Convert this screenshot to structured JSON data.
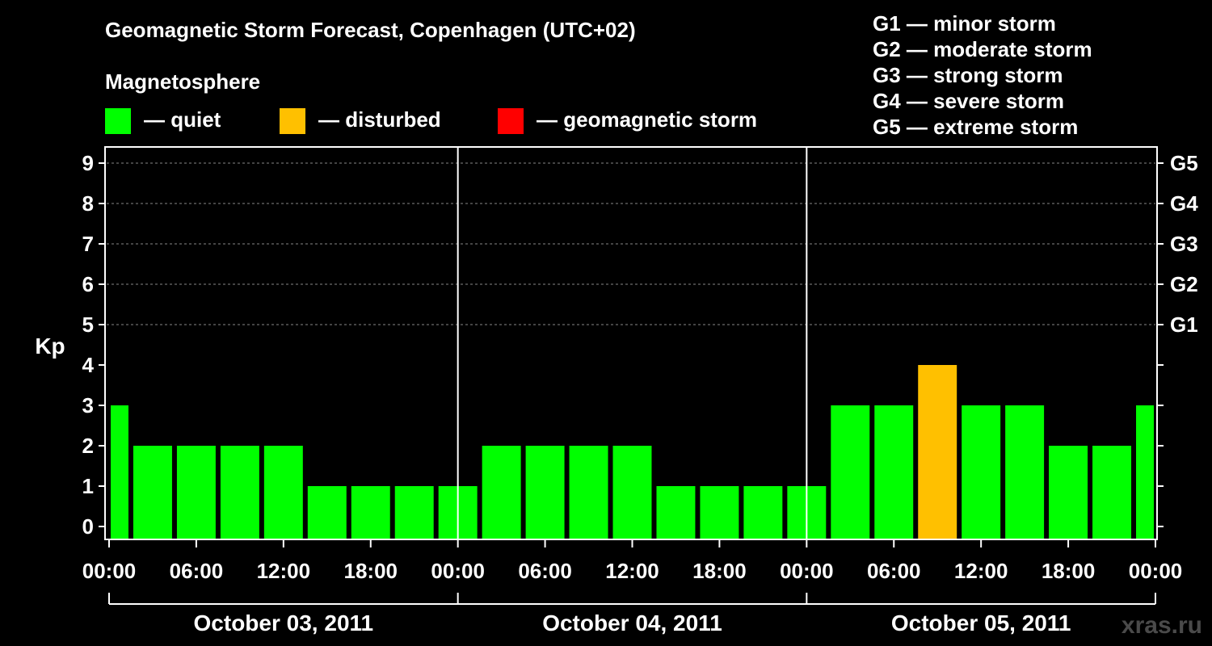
{
  "chart_data": {
    "type": "bar",
    "title": "Geomagnetic Storm Forecast, Copenhagen (UTC+02)",
    "ylabel": "Kp",
    "ylim": [
      0,
      9
    ],
    "yticks": [
      "0",
      "1",
      "2",
      "3",
      "4",
      "5",
      "6",
      "7",
      "8",
      "9"
    ],
    "right_ticks": [
      {
        "kp": 5,
        "label": "G1"
      },
      {
        "kp": 6,
        "label": "G2"
      },
      {
        "kp": 7,
        "label": "G3"
      },
      {
        "kp": 8,
        "label": "G4"
      },
      {
        "kp": 9,
        "label": "G5"
      }
    ],
    "time_labels": [
      "00:00",
      "06:00",
      "12:00",
      "18:00",
      "00:00",
      "06:00",
      "12:00",
      "18:00",
      "00:00",
      "06:00",
      "12:00",
      "18:00",
      "00:00"
    ],
    "days": [
      "October 03, 2011",
      "October 04, 2011",
      "October 05, 2011"
    ],
    "hours_total": 72,
    "bars": [
      {
        "start": 0,
        "end": 1.5,
        "kp": 3,
        "status": "quiet"
      },
      {
        "start": 1.5,
        "end": 4.5,
        "kp": 2,
        "status": "quiet"
      },
      {
        "start": 4.5,
        "end": 7.5,
        "kp": 2,
        "status": "quiet"
      },
      {
        "start": 7.5,
        "end": 10.5,
        "kp": 2,
        "status": "quiet"
      },
      {
        "start": 10.5,
        "end": 13.5,
        "kp": 2,
        "status": "quiet"
      },
      {
        "start": 13.5,
        "end": 16.5,
        "kp": 1,
        "status": "quiet"
      },
      {
        "start": 16.5,
        "end": 19.5,
        "kp": 1,
        "status": "quiet"
      },
      {
        "start": 19.5,
        "end": 22.5,
        "kp": 1,
        "status": "quiet"
      },
      {
        "start": 22.5,
        "end": 25.5,
        "kp": 1,
        "status": "quiet"
      },
      {
        "start": 25.5,
        "end": 28.5,
        "kp": 2,
        "status": "quiet"
      },
      {
        "start": 28.5,
        "end": 31.5,
        "kp": 2,
        "status": "quiet"
      },
      {
        "start": 31.5,
        "end": 34.5,
        "kp": 2,
        "status": "quiet"
      },
      {
        "start": 34.5,
        "end": 37.5,
        "kp": 2,
        "status": "quiet"
      },
      {
        "start": 37.5,
        "end": 40.5,
        "kp": 1,
        "status": "quiet"
      },
      {
        "start": 40.5,
        "end": 43.5,
        "kp": 1,
        "status": "quiet"
      },
      {
        "start": 43.5,
        "end": 46.5,
        "kp": 1,
        "status": "quiet"
      },
      {
        "start": 46.5,
        "end": 49.5,
        "kp": 1,
        "status": "quiet"
      },
      {
        "start": 49.5,
        "end": 52.5,
        "kp": 3,
        "status": "quiet"
      },
      {
        "start": 52.5,
        "end": 55.5,
        "kp": 3,
        "status": "quiet"
      },
      {
        "start": 55.5,
        "end": 58.5,
        "kp": 4,
        "status": "disturbed"
      },
      {
        "start": 58.5,
        "end": 61.5,
        "kp": 3,
        "status": "quiet"
      },
      {
        "start": 61.5,
        "end": 64.5,
        "kp": 3,
        "status": "quiet"
      },
      {
        "start": 64.5,
        "end": 67.5,
        "kp": 2,
        "status": "quiet"
      },
      {
        "start": 67.5,
        "end": 70.5,
        "kp": 2,
        "status": "quiet"
      },
      {
        "start": 70.5,
        "end": 72,
        "kp": 3,
        "status": "quiet"
      }
    ]
  },
  "legend": {
    "magnetosphere_title": "Magnetosphere",
    "items": [
      {
        "status": "quiet",
        "label": "— quiet",
        "color": "#00ff00"
      },
      {
        "status": "disturbed",
        "label": "— disturbed",
        "color": "#ffc000"
      },
      {
        "status": "storm",
        "label": "— geomagnetic storm",
        "color": "#ff0000"
      }
    ],
    "g_scale": [
      "G1 — minor storm",
      "G2 — moderate storm",
      "G3 — strong storm",
      "G4 — severe storm",
      "G5 — extreme storm"
    ]
  },
  "watermark": "xras.ru"
}
